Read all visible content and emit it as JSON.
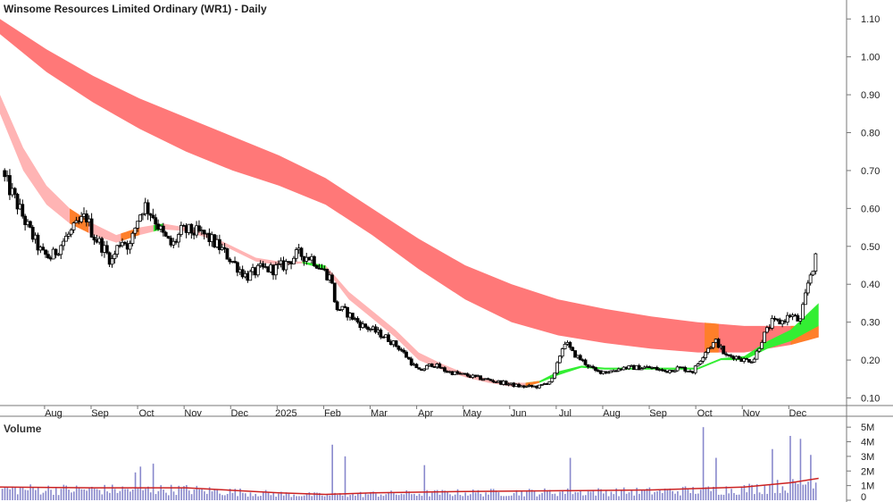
{
  "chart_data": {
    "type": "candlestick",
    "title": "Winsome Resources Limited Ordinary (WR1) - Daily",
    "price_axis": {
      "ylim": [
        0.08,
        1.15
      ],
      "ticks": [
        0.1,
        0.2,
        0.3,
        0.4,
        0.5,
        0.6,
        0.7,
        0.8,
        0.9,
        1.0,
        1.1
      ],
      "tick_labels": [
        "0.10",
        "0.20",
        "0.30",
        "0.40",
        "0.50",
        "0.60",
        "0.70",
        "0.80",
        "0.90",
        "1.00",
        "1.10"
      ]
    },
    "x_axis": {
      "labels": [
        "Aug",
        "Sep",
        "Oct",
        "Nov",
        "Dec",
        "2025",
        "Feb",
        "Mar",
        "Apr",
        "May",
        "Jun",
        "Jul",
        "Aug",
        "Sep",
        "Oct",
        "Nov",
        "Dec"
      ],
      "label_positions": [
        1.15,
        2.15,
        3.15,
        4.15,
        5.15,
        6.15,
        7.15,
        8.15,
        9.15,
        10.15,
        11.15,
        12.15,
        13.15,
        14.15,
        15.15,
        16.15,
        17.15
      ],
      "xlim": [
        0,
        18.2
      ]
    },
    "close_series": {
      "name": "WR1",
      "x": [
        0.0,
        0.3,
        0.6,
        0.9,
        1.1,
        1.4,
        1.7,
        1.85,
        2.0,
        2.2,
        2.4,
        2.6,
        2.8,
        2.95,
        3.1,
        3.3,
        3.5,
        3.7,
        3.9,
        4.1,
        4.4,
        4.7,
        5.0,
        5.3,
        5.6,
        5.9,
        6.1,
        6.4,
        6.7,
        7.0,
        7.15,
        7.2,
        7.4,
        7.6,
        7.8,
        8.0,
        8.3,
        8.6,
        9.0,
        9.3,
        9.6,
        10.0,
        10.4,
        10.8,
        11.2,
        11.6,
        11.9,
        12.05,
        12.15,
        12.3,
        12.5,
        12.8,
        13.1,
        13.4,
        13.7,
        14.0,
        14.3,
        14.6,
        14.9,
        15.1,
        15.2,
        15.4,
        15.6,
        15.8,
        16.0,
        16.2,
        16.4,
        16.6,
        16.8,
        17.0,
        17.2,
        17.4,
        17.55
      ],
      "values": [
        0.7,
        0.63,
        0.55,
        0.48,
        0.47,
        0.52,
        0.56,
        0.58,
        0.53,
        0.5,
        0.46,
        0.52,
        0.5,
        0.57,
        0.61,
        0.58,
        0.53,
        0.5,
        0.54,
        0.54,
        0.53,
        0.5,
        0.46,
        0.42,
        0.44,
        0.44,
        0.45,
        0.48,
        0.47,
        0.43,
        0.41,
        0.34,
        0.33,
        0.31,
        0.29,
        0.28,
        0.26,
        0.23,
        0.17,
        0.19,
        0.17,
        0.16,
        0.15,
        0.14,
        0.13,
        0.13,
        0.15,
        0.22,
        0.25,
        0.22,
        0.2,
        0.17,
        0.17,
        0.18,
        0.18,
        0.18,
        0.17,
        0.18,
        0.17,
        0.21,
        0.23,
        0.25,
        0.21,
        0.21,
        0.2,
        0.2,
        0.26,
        0.3,
        0.3,
        0.32,
        0.3,
        0.42,
        0.47
      ]
    },
    "ribbons": [
      {
        "x": [
          0.0,
          1.0,
          2.0,
          3.0,
          4.0,
          5.0,
          6.0,
          7.0,
          8.0,
          9.0,
          10.0,
          11.0,
          12.0,
          13.0,
          14.0,
          15.0,
          16.0,
          17.0,
          17.6
        ],
        "upper": [
          1.1,
          1.02,
          0.95,
          0.89,
          0.84,
          0.79,
          0.74,
          0.68,
          0.6,
          0.52,
          0.45,
          0.4,
          0.36,
          0.335,
          0.315,
          0.3,
          0.29,
          0.29,
          0.29
        ],
        "lower": [
          1.06,
          0.96,
          0.88,
          0.81,
          0.75,
          0.7,
          0.66,
          0.61,
          0.53,
          0.44,
          0.36,
          0.3,
          0.265,
          0.245,
          0.23,
          0.22,
          0.22,
          0.24,
          0.26
        ],
        "color": "#ff7878",
        "trend_segments": [
          {
            "from": 15.15,
            "to": 15.45,
            "color": "#ff7f2a"
          },
          {
            "from": 17.0,
            "to": 17.6,
            "color": "#ff7f2a"
          }
        ]
      },
      {
        "x": [
          0.0,
          0.5,
          1.0,
          1.5,
          2.0,
          2.5,
          3.0,
          3.5,
          4.0,
          4.5,
          5.0,
          5.5,
          6.0,
          6.5,
          7.0,
          7.5,
          8.0,
          8.5,
          9.0,
          9.5,
          10.0,
          10.5,
          11.0,
          11.3
        ],
        "upper": [
          0.9,
          0.76,
          0.66,
          0.6,
          0.56,
          0.53,
          0.55,
          0.56,
          0.55,
          0.53,
          0.5,
          0.47,
          0.46,
          0.46,
          0.45,
          0.38,
          0.33,
          0.28,
          0.22,
          0.19,
          0.165,
          0.15,
          0.14,
          0.14
        ],
        "lower": [
          0.85,
          0.7,
          0.61,
          0.56,
          0.53,
          0.51,
          0.53,
          0.545,
          0.54,
          0.52,
          0.49,
          0.46,
          0.45,
          0.455,
          0.44,
          0.36,
          0.31,
          0.26,
          0.2,
          0.175,
          0.155,
          0.14,
          0.13,
          0.13
        ],
        "color": "#ffb4b4",
        "trend_segments": [
          {
            "from": 1.5,
            "to": 1.9,
            "color": "#ff7f2a"
          },
          {
            "from": 2.6,
            "to": 3.0,
            "color": "#ff7f2a"
          },
          {
            "from": 3.3,
            "to": 3.5,
            "color": "#33ee33"
          },
          {
            "from": 6.5,
            "to": 7.0,
            "color": "#33ee33"
          }
        ]
      },
      {
        "x": [
          11.3,
          11.6,
          12.0,
          12.5,
          13.0,
          13.5,
          14.0,
          14.5,
          15.0,
          15.5,
          16.0,
          16.5,
          17.0,
          17.6
        ],
        "upper": [
          0.14,
          0.145,
          0.17,
          0.185,
          0.18,
          0.18,
          0.18,
          0.18,
          0.18,
          0.205,
          0.21,
          0.25,
          0.28,
          0.35
        ],
        "lower": [
          0.13,
          0.14,
          0.16,
          0.18,
          0.175,
          0.175,
          0.175,
          0.175,
          0.175,
          0.2,
          0.2,
          0.23,
          0.25,
          0.29
        ],
        "color": "#33ee33",
        "trend_segments": [
          {
            "from": 11.3,
            "to": 11.6,
            "color": "#ff7f2a"
          }
        ]
      }
    ],
    "volume": {
      "title": "Volume",
      "ylim": [
        0,
        5500000
      ],
      "ticks": [
        0,
        1000000,
        2000000,
        3000000,
        4000000,
        5000000
      ],
      "tick_labels": [
        "0",
        "1M",
        "2M",
        "3M",
        "4M",
        "5M"
      ],
      "bar_color": "#8888cc",
      "ma_color": "#cc2222",
      "spikes": [
        {
          "x": 2.9,
          "v": 1900000
        },
        {
          "x": 3.0,
          "v": 2300000
        },
        {
          "x": 3.3,
          "v": 2500000
        },
        {
          "x": 7.15,
          "v": 3800000
        },
        {
          "x": 7.4,
          "v": 3000000
        },
        {
          "x": 9.1,
          "v": 2400000
        },
        {
          "x": 12.25,
          "v": 2900000
        },
        {
          "x": 15.1,
          "v": 5000000
        },
        {
          "x": 15.4,
          "v": 2900000
        },
        {
          "x": 16.6,
          "v": 3500000
        },
        {
          "x": 17.0,
          "v": 4400000
        },
        {
          "x": 17.2,
          "v": 4200000
        },
        {
          "x": 17.45,
          "v": 3100000
        }
      ],
      "ma": {
        "x": [
          0,
          2,
          4,
          6,
          7,
          8,
          10,
          12,
          14,
          15,
          16,
          17,
          17.6
        ],
        "values": [
          900000,
          850000,
          850000,
          500000,
          400000,
          500000,
          600000,
          650000,
          700000,
          800000,
          900000,
          1200000,
          1500000
        ]
      }
    }
  }
}
